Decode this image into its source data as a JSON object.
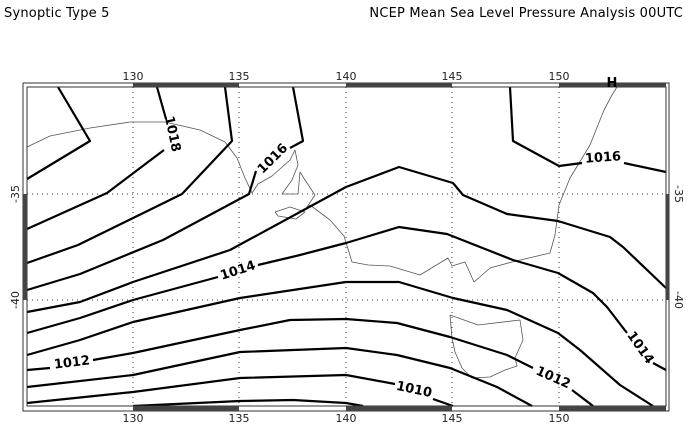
{
  "header": {
    "left_title": "Synoptic Type 5",
    "right_title": "NCEP Mean Sea Level Pressure Analysis 00UTC"
  },
  "map": {
    "lon_ticks": [
      "130",
      "135",
      "140",
      "145",
      "150"
    ],
    "lat_ticks": [
      "-35",
      "-40"
    ],
    "high_marker": "H",
    "contour_labels": {
      "l1018": "1018",
      "l1016a": "1016",
      "l1016b": "1016",
      "l1014a": "1014",
      "l1014b": "1014",
      "l1012a": "1012",
      "l1012b": "1012",
      "l1010": "1010"
    },
    "colors": {
      "contour": "#000000",
      "coast": "#555555",
      "frame_dark": "#444444"
    }
  }
}
